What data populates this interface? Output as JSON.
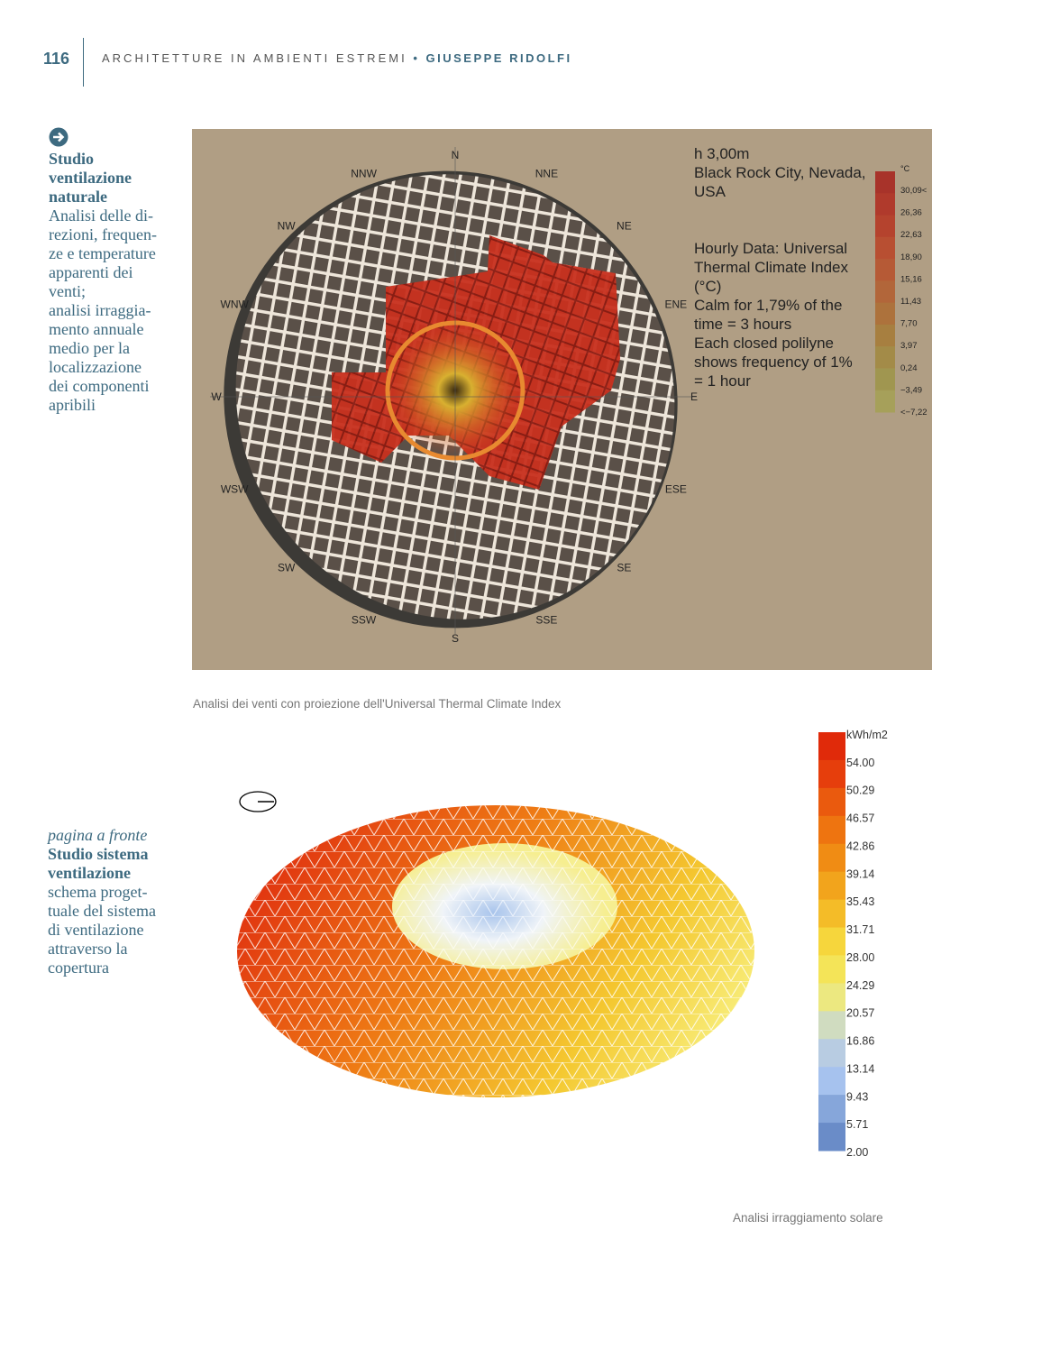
{
  "header": {
    "page_number": "116",
    "running_title": "ARCHITETTURE IN AMBIENTI ESTREMI",
    "separator": "•",
    "author": "GIUSEPPE RIDOLFI"
  },
  "sidebar_1": {
    "title_lines": [
      "Studio",
      "ventilazione",
      "naturale"
    ],
    "body_lines": [
      "Analisi delle di-",
      "rezioni, frequen-",
      "ze e temperature",
      "apparenti dei",
      "venti;",
      "analisi irraggia-",
      "mento annuale",
      "medio per la",
      "localizzazione",
      "dei componenti",
      "apribili"
    ]
  },
  "figure_1": {
    "compass": [
      "N",
      "NNE",
      "NE",
      "ENE",
      "E",
      "ESE",
      "SE",
      "SSE",
      "S",
      "SSW",
      "SW",
      "WSW",
      "W",
      "WNW",
      "NW",
      "NNW"
    ],
    "location_lines": [
      "h 3,00m",
      "Black Rock City, Nevada,",
      "USA"
    ],
    "description_lines": [
      "Hourly Data: Universal",
      "Thermal Climate Index",
      "(°C)",
      "Calm for 1,79% of the",
      "time = 3 hours",
      "Each closed polilyne",
      "shows frequency of 1%",
      "= 1 hour"
    ],
    "legend": {
      "unit": "°C",
      "labels": [
        "30,09<",
        "26,36",
        "22,63",
        "18,90",
        "15,16",
        "11,43",
        "7,70",
        "3,97",
        "0,24",
        "−3,49",
        "<−7,22"
      ]
    },
    "caption": "Analisi dei venti con proiezione dell'Universal Thermal Climate Index"
  },
  "sidebar_2": {
    "note": "pagina a fronte",
    "title_lines": [
      "Studio sistema",
      "ventilazione"
    ],
    "body_lines": [
      "schema proget-",
      "tuale del sistema",
      "di ventilazione",
      "attraverso la",
      "copertura"
    ]
  },
  "figure_2": {
    "legend": {
      "unit": "kWh/m2",
      "labels": [
        "54.00",
        "50.29",
        "46.57",
        "42.86",
        "39.14",
        "35.43",
        "31.71",
        "28.00",
        "24.29",
        "20.57",
        "16.86",
        "13.14",
        "9.43",
        "5.71",
        "2.00"
      ]
    },
    "caption": "Analisi irraggiamento solare"
  }
}
